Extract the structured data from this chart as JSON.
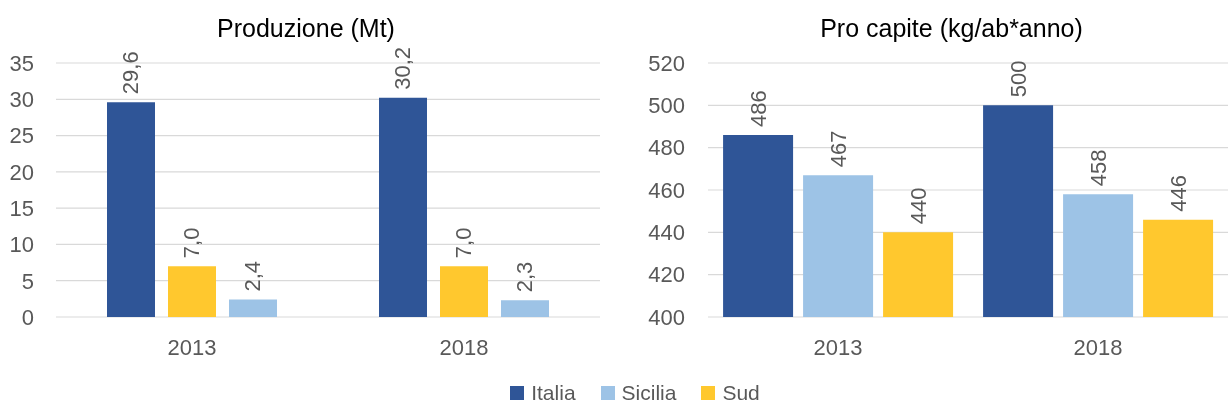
{
  "chart_data": [
    {
      "type": "bar",
      "title": "Produzione (Mt)",
      "categories": [
        "2013",
        "2018"
      ],
      "series": [
        {
          "name": "Italia",
          "color": "#2f5597",
          "values": [
            29.6,
            30.2
          ],
          "value_labels": [
            "29,6",
            "30,2"
          ]
        },
        {
          "name": "Sud",
          "color": "#ffc82e",
          "values": [
            7.0,
            7.0
          ],
          "value_labels": [
            "7,0",
            "7,0"
          ]
        },
        {
          "name": "Sicilia",
          "color": "#9dc3e6",
          "values": [
            2.4,
            2.3
          ],
          "value_labels": [
            "2,4",
            "2,3"
          ]
        }
      ],
      "ylim": [
        0,
        35
      ],
      "yticks": [
        0,
        5,
        10,
        15,
        20,
        25,
        30,
        35
      ],
      "grid": "y",
      "legend": "bottom"
    },
    {
      "type": "bar",
      "title": "Pro capite (kg/ab*anno)",
      "categories": [
        "2013",
        "2018"
      ],
      "series": [
        {
          "name": "Italia",
          "color": "#2f5597",
          "values": [
            486,
            500
          ],
          "value_labels": [
            "486",
            "500"
          ]
        },
        {
          "name": "Sicilia",
          "color": "#9dc3e6",
          "values": [
            467,
            458
          ],
          "value_labels": [
            "467",
            "458"
          ]
        },
        {
          "name": "Sud",
          "color": "#ffc82e",
          "values": [
            440,
            446
          ],
          "value_labels": [
            "440",
            "446"
          ]
        }
      ],
      "ylim": [
        400,
        520
      ],
      "yticks": [
        400,
        420,
        440,
        460,
        480,
        500,
        520
      ],
      "grid": "y",
      "legend": "bottom"
    }
  ]
}
